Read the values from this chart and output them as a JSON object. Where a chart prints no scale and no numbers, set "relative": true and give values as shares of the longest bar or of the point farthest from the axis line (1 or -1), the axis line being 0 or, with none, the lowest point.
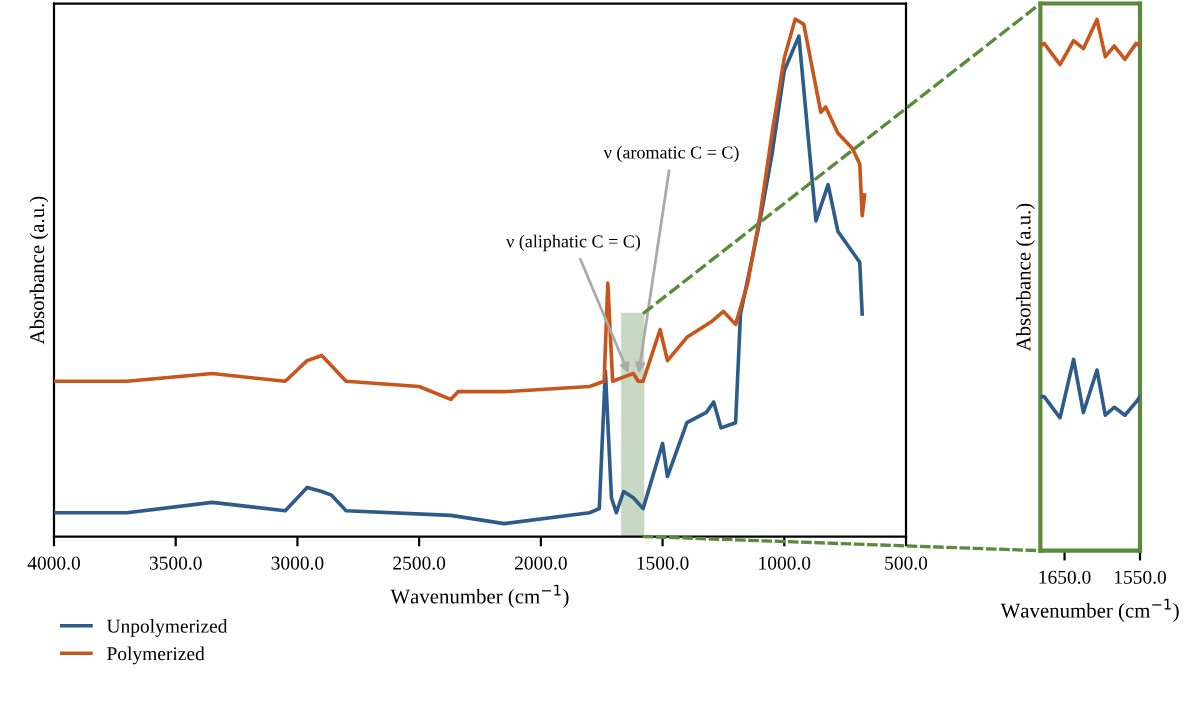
{
  "chart_data": [
    {
      "type": "line",
      "relative": true,
      "xlabel": "Wavenumber (cm$^{−1}$)",
      "ylabel": "Absorbance (a.u.)",
      "xlim": [
        4000,
        500
      ],
      "xticks": [
        {
          "value": 4000,
          "label": "4000.0"
        },
        {
          "value": 3500,
          "label": "3500.0"
        },
        {
          "value": 3000,
          "label": "3000.0"
        },
        {
          "value": 2500,
          "label": "2500.0"
        },
        {
          "value": 2000,
          "label": "2000.0"
        },
        {
          "value": 1500,
          "label": "1500.0"
        },
        {
          "value": 1000,
          "label": "1000.0"
        },
        {
          "value": 500,
          "label": "500.0"
        }
      ],
      "tick_labels": "x",
      "grid": false,
      "legend": "bottom left",
      "line_style": "solid",
      "marker": "none",
      "series": [
        {
          "name": "Unpolymerized",
          "color": "#2d5b8a",
          "x": [
            4000,
            3700,
            3350,
            3050,
            2960,
            2900,
            2860,
            2800,
            2370,
            2150,
            1800,
            1760,
            1735,
            1710,
            1690,
            1660,
            1620,
            1580,
            1500,
            1480,
            1400,
            1320,
            1290,
            1260,
            1200,
            1180,
            1100,
            1050,
            1000,
            940,
            870,
            820,
            780,
            720,
            690,
            680
          ],
          "values": [
            0.046,
            0.046,
            0.066,
            0.05,
            0.095,
            0.087,
            0.08,
            0.05,
            0.041,
            0.025,
            0.046,
            0.054,
            0.32,
            0.075,
            0.046,
            0.087,
            0.075,
            0.054,
            0.18,
            0.116,
            0.22,
            0.24,
            0.26,
            0.21,
            0.22,
            0.43,
            0.61,
            0.74,
            0.9,
            0.967,
            0.61,
            0.68,
            0.59,
            0.55,
            0.53,
            0.43
          ]
        },
        {
          "name": "Polymerized",
          "color": "#c8551b",
          "x": [
            4000,
            3700,
            3350,
            3050,
            2960,
            2900,
            2860,
            2800,
            2500,
            2370,
            2340,
            2150,
            1800,
            1740,
            1725,
            1705,
            1650,
            1620,
            1600,
            1580,
            1510,
            1480,
            1400,
            1300,
            1250,
            1200,
            1150,
            1100,
            1050,
            1000,
            955,
            920,
            850,
            830,
            780,
            720,
            690,
            680,
            670
          ],
          "values": [
            0.3,
            0.3,
            0.315,
            0.3,
            0.34,
            0.35,
            0.33,
            0.3,
            0.29,
            0.265,
            0.28,
            0.28,
            0.29,
            0.3,
            0.49,
            0.3,
            0.31,
            0.315,
            0.3,
            0.3,
            0.4,
            0.34,
            0.385,
            0.415,
            0.435,
            0.41,
            0.49,
            0.62,
            0.78,
            0.925,
            1.0,
            0.99,
            0.82,
            0.83,
            0.78,
            0.75,
            0.72,
            0.62,
            0.66
          ]
        }
      ],
      "bands": [
        {
          "axis": "x",
          "from": 1670,
          "to": 1575,
          "color": "#c9d8c3"
        }
      ],
      "annotations": [
        {
          "text": "ν (aliphatic C = C)",
          "x": 1635,
          "y": 0.31
        },
        {
          "text": "ν (aromatic C = C)",
          "x": 1600,
          "y": 0.31
        }
      ]
    },
    {
      "type": "line",
      "relative": true,
      "xlabel": "Wavenumber (cm$^{−1}$)",
      "ylabel": "Absorbance (a.u.)",
      "xlim": [
        1682,
        1550
      ],
      "xticks": [
        {
          "value": 1650,
          "label": "1650.0"
        },
        {
          "value": 1550,
          "label": "1550.0"
        }
      ],
      "tick_labels": "x",
      "grid": false,
      "line_style": "solid",
      "marker": "none",
      "series": [
        {
          "color": "#2d5b8a",
          "x": [
            1682,
            1677,
            1656,
            1638,
            1625,
            1607,
            1596,
            1584,
            1570,
            1555,
            1550
          ],
          "values": [
            0.29,
            0.29,
            0.25,
            0.36,
            0.26,
            0.34,
            0.255,
            0.27,
            0.255,
            0.28,
            0.29
          ]
        },
        {
          "color": "#c8551b",
          "x": [
            1682,
            1677,
            1656,
            1638,
            1625,
            1607,
            1596,
            1584,
            1570,
            1555,
            1550
          ],
          "values": [
            0.95,
            0.955,
            0.915,
            0.96,
            0.945,
            1.0,
            0.93,
            0.95,
            0.925,
            0.955,
            0.95
          ]
        }
      ]
    }
  ]
}
